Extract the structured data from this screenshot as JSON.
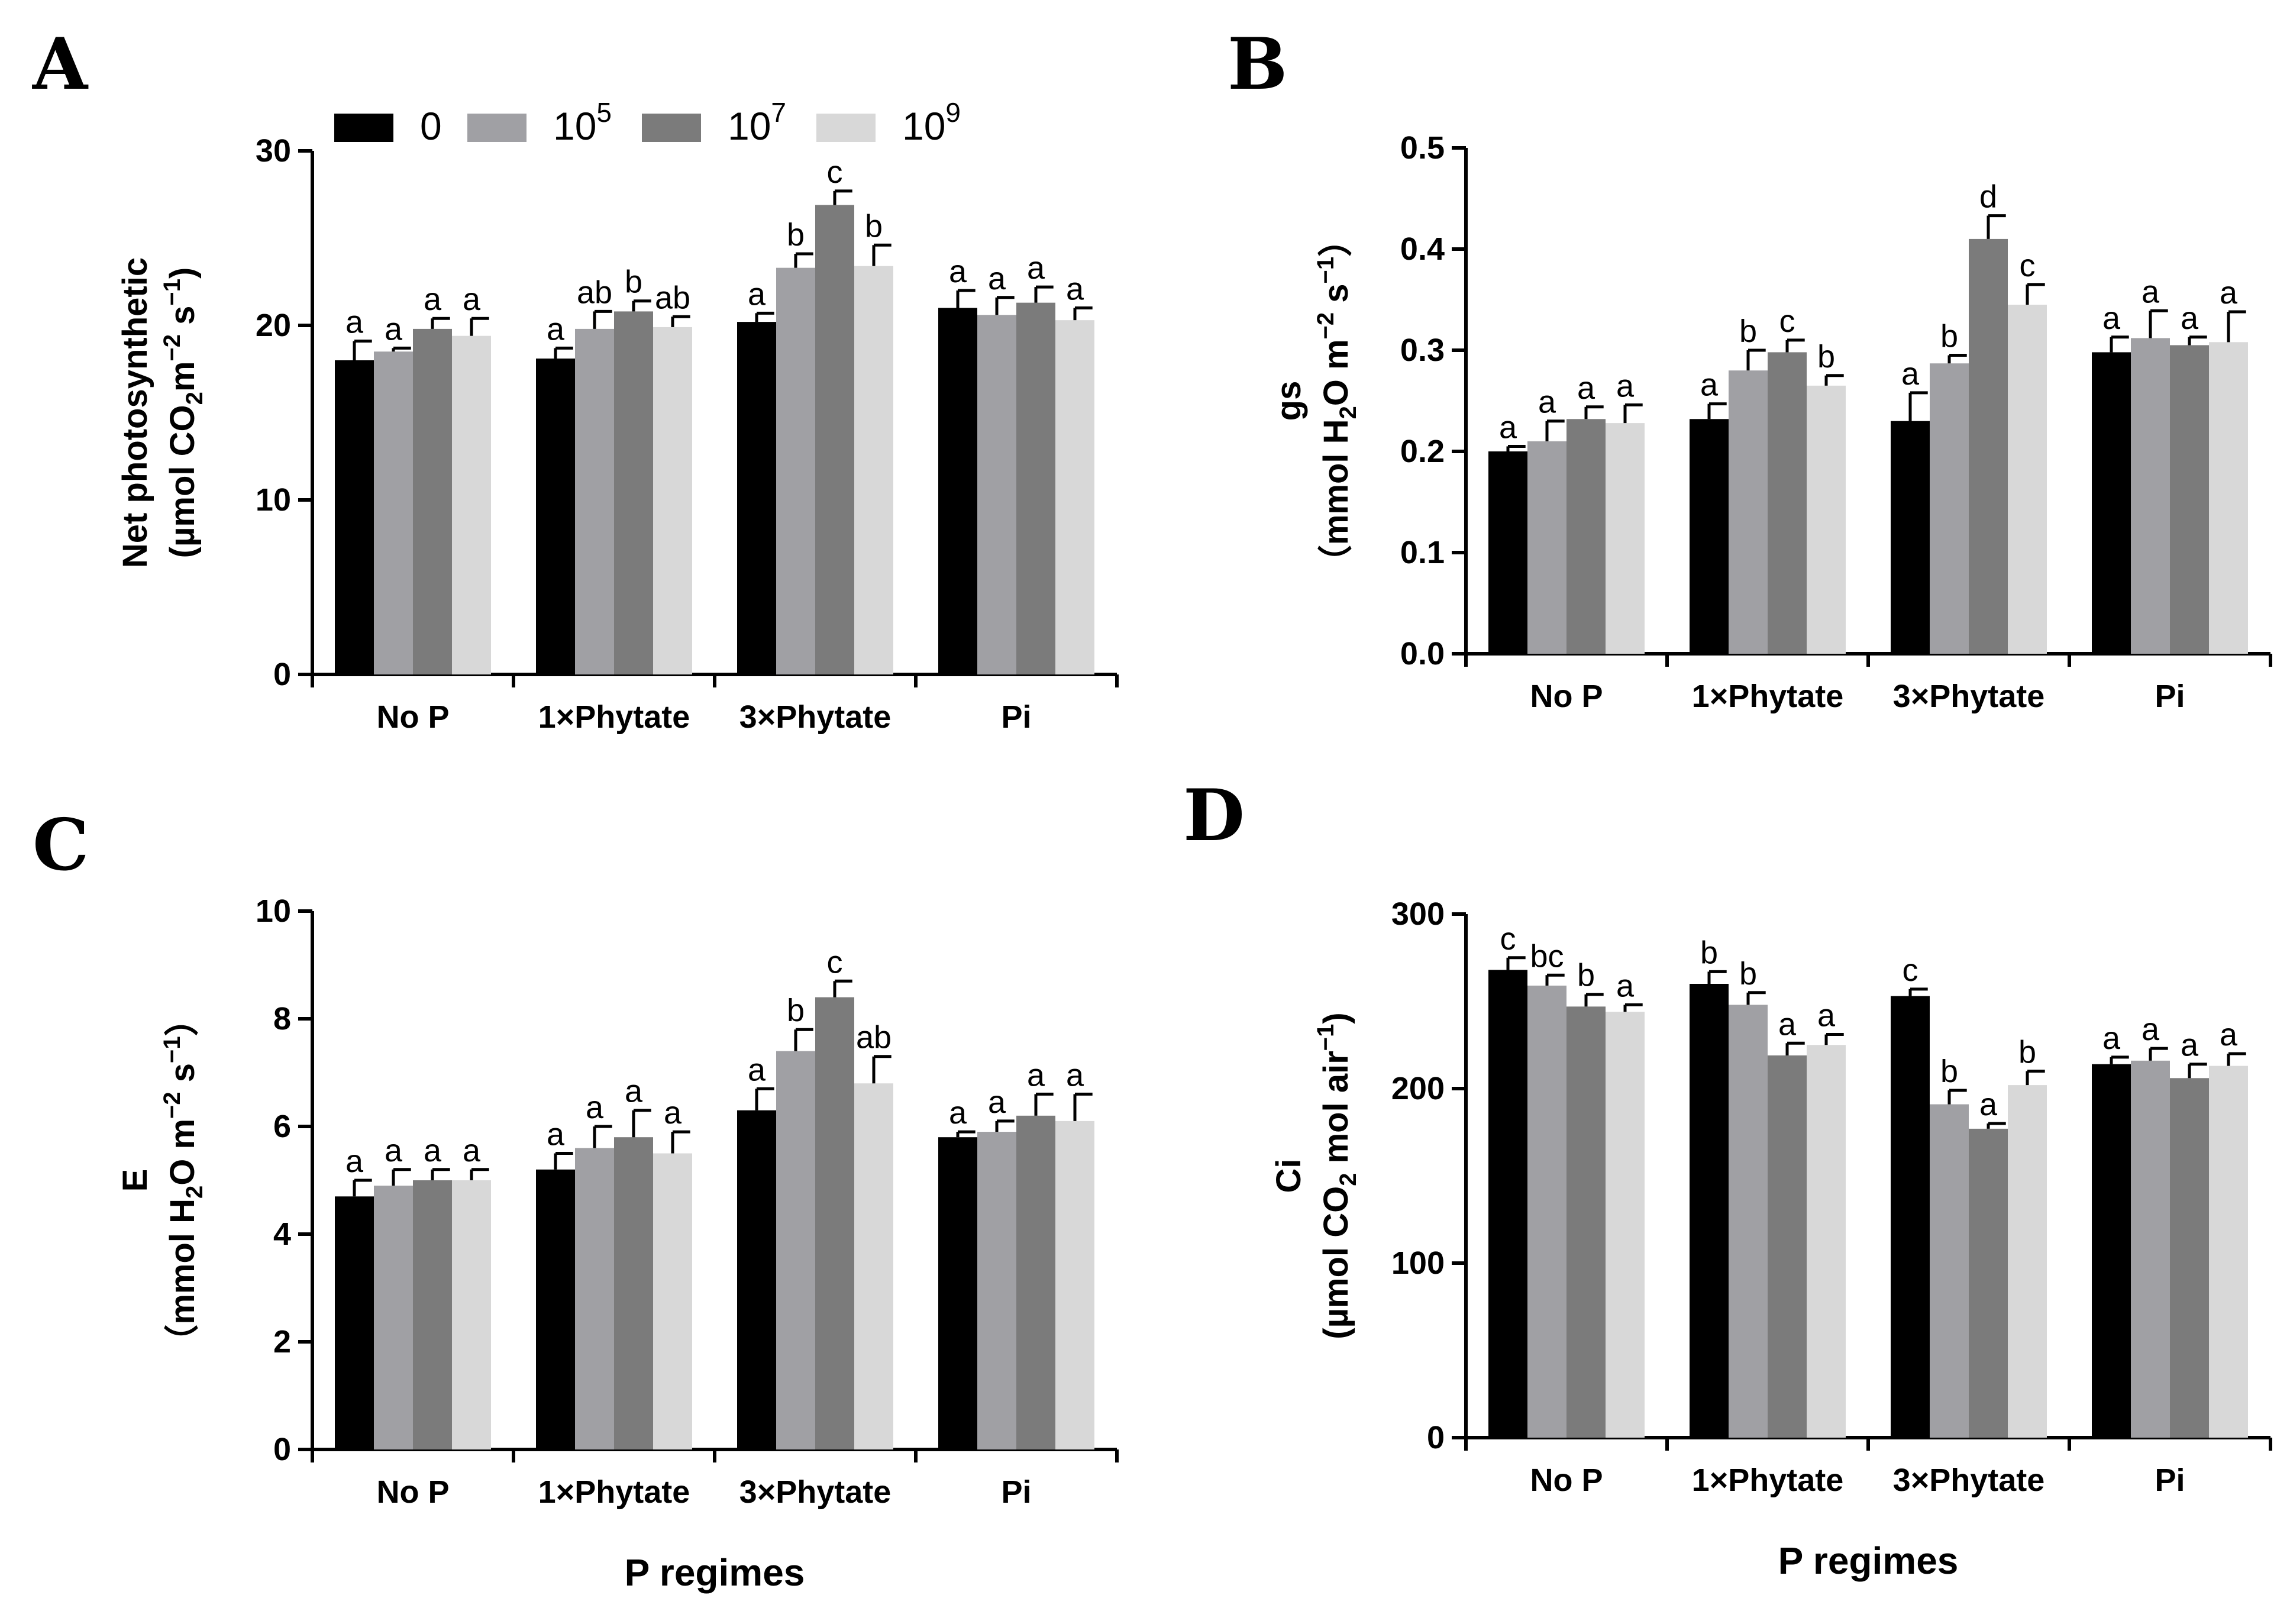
{
  "legend": {
    "entries": [
      {
        "base": "0",
        "sup": ""
      },
      {
        "base": "10",
        "sup": "5"
      },
      {
        "base": "10",
        "sup": "7"
      },
      {
        "base": "10",
        "sup": "9"
      }
    ]
  },
  "colors": [
    "#000000",
    "#a0a0a4",
    "#7b7b7b",
    "#d8d8d8"
  ],
  "chart_data": [
    {
      "panel": "A",
      "type": "bar",
      "categories": [
        "No P",
        "1×Phytate",
        "3×Phytate",
        "Pi"
      ],
      "ylim": [
        0,
        30
      ],
      "yticks": [
        0,
        10,
        20,
        30
      ],
      "ylabel_line1": [
        {
          "t": "Net photosynthetic"
        }
      ],
      "ylabel_line2": [
        {
          "t": "(µmol CO"
        },
        {
          "t": "2",
          "sub": true
        },
        {
          "t": "m"
        },
        {
          "t": "−2",
          "sup": true
        },
        {
          "t": " s"
        },
        {
          "t": "−1",
          "sup": true
        },
        {
          "t": ")"
        }
      ],
      "xlabel": "",
      "series": [
        {
          "name": "0",
          "values": [
            18.0,
            18.1,
            20.2,
            21.0
          ],
          "errors": [
            1.1,
            0.6,
            0.5,
            1.0
          ],
          "letters": [
            "a",
            "a",
            "a",
            "a"
          ]
        },
        {
          "name": "10^5",
          "values": [
            18.5,
            19.8,
            23.3,
            20.6
          ],
          "errors": [
            0.2,
            1.0,
            0.8,
            1.0
          ],
          "letters": [
            "a",
            "ab",
            "b",
            "a"
          ]
        },
        {
          "name": "10^7",
          "values": [
            19.8,
            20.8,
            26.9,
            21.3
          ],
          "errors": [
            0.6,
            0.6,
            0.8,
            0.9
          ],
          "letters": [
            "a",
            "b",
            "c",
            "a"
          ]
        },
        {
          "name": "10^9",
          "values": [
            19.4,
            19.9,
            23.4,
            20.3
          ],
          "errors": [
            1.0,
            0.6,
            1.2,
            0.7
          ],
          "letters": [
            "a",
            "ab",
            "b",
            "a"
          ]
        }
      ]
    },
    {
      "panel": "B",
      "type": "bar",
      "categories": [
        "No P",
        "1×Phytate",
        "3×Phytate",
        "Pi"
      ],
      "ylim": [
        0,
        0.5
      ],
      "yticks": [
        0.0,
        0.1,
        0.2,
        0.3,
        0.4,
        0.5
      ],
      "ylabel_line1": [
        {
          "t": "gs"
        }
      ],
      "ylabel_line2": [
        {
          "t": "（mmol H"
        },
        {
          "t": "2",
          "sub": true
        },
        {
          "t": "O m"
        },
        {
          "t": "−2",
          "sup": true
        },
        {
          "t": " s"
        },
        {
          "t": "−1",
          "sup": true
        },
        {
          "t": "）"
        }
      ],
      "xlabel": "",
      "series": [
        {
          "name": "0",
          "values": [
            0.2,
            0.232,
            0.23,
            0.298
          ],
          "errors": [
            0.005,
            0.015,
            0.028,
            0.015
          ],
          "letters": [
            "a",
            "a",
            "a",
            "a"
          ]
        },
        {
          "name": "10^5",
          "values": [
            0.21,
            0.28,
            0.287,
            0.312
          ],
          "errors": [
            0.02,
            0.02,
            0.008,
            0.027
          ],
          "letters": [
            "a",
            "b",
            "b",
            "a"
          ]
        },
        {
          "name": "10^7",
          "values": [
            0.232,
            0.298,
            0.41,
            0.305
          ],
          "errors": [
            0.012,
            0.012,
            0.023,
            0.008
          ],
          "letters": [
            "a",
            "c",
            "d",
            "a"
          ]
        },
        {
          "name": "10^9",
          "values": [
            0.228,
            0.265,
            0.345,
            0.308
          ],
          "errors": [
            0.018,
            0.01,
            0.02,
            0.03
          ],
          "letters": [
            "a",
            "b",
            "c",
            "a"
          ]
        }
      ]
    },
    {
      "panel": "C",
      "type": "bar",
      "categories": [
        "No P",
        "1×Phytate",
        "3×Phytate",
        "Pi"
      ],
      "ylim": [
        0,
        10
      ],
      "yticks": [
        0,
        2,
        4,
        6,
        8,
        10
      ],
      "ylabel_line1": [
        {
          "t": "E"
        }
      ],
      "ylabel_line2": [
        {
          "t": "（mmol H"
        },
        {
          "t": "2",
          "sub": true
        },
        {
          "t": "O m"
        },
        {
          "t": "−2",
          "sup": true
        },
        {
          "t": " s"
        },
        {
          "t": "−1",
          "sup": true
        },
        {
          "t": "）"
        }
      ],
      "xlabel": "P regimes",
      "series": [
        {
          "name": "0",
          "values": [
            4.7,
            5.2,
            6.3,
            5.8
          ],
          "errors": [
            0.3,
            0.3,
            0.4,
            0.1
          ],
          "letters": [
            "a",
            "a",
            "a",
            "a"
          ]
        },
        {
          "name": "10^5",
          "values": [
            4.9,
            5.6,
            7.4,
            5.9
          ],
          "errors": [
            0.3,
            0.4,
            0.4,
            0.2
          ],
          "letters": [
            "a",
            "a",
            "b",
            "a"
          ]
        },
        {
          "name": "10^7",
          "values": [
            5.0,
            5.8,
            8.4,
            6.2
          ],
          "errors": [
            0.2,
            0.5,
            0.3,
            0.4
          ],
          "letters": [
            "a",
            "a",
            "c",
            "a"
          ]
        },
        {
          "name": "10^9",
          "values": [
            5.0,
            5.5,
            6.8,
            6.1
          ],
          "errors": [
            0.2,
            0.4,
            0.5,
            0.5
          ],
          "letters": [
            "a",
            "a",
            "ab",
            "a"
          ]
        }
      ]
    },
    {
      "panel": "D",
      "type": "bar",
      "categories": [
        "No P",
        "1×Phytate",
        "3×Phytate",
        "Pi"
      ],
      "ylim": [
        0,
        300
      ],
      "yticks": [
        0,
        100,
        200,
        300
      ],
      "ylabel_line1": [
        {
          "t": "Ci"
        }
      ],
      "ylabel_line2": [
        {
          "t": "(µmol CO"
        },
        {
          "t": "2",
          "sub": true
        },
        {
          "t": " mol air"
        },
        {
          "t": "−1",
          "sup": true
        },
        {
          "t": ")"
        }
      ],
      "xlabel": "P regimes",
      "series": [
        {
          "name": "0",
          "values": [
            268,
            260,
            253,
            214
          ],
          "errors": [
            7,
            7,
            4,
            4
          ],
          "letters": [
            "c",
            "b",
            "c",
            "a"
          ]
        },
        {
          "name": "10^5",
          "values": [
            259,
            248,
            191,
            216
          ],
          "errors": [
            6,
            7,
            8,
            7
          ],
          "letters": [
            "bc",
            "b",
            "b",
            "a"
          ]
        },
        {
          "name": "10^7",
          "values": [
            247,
            219,
            177,
            206
          ],
          "errors": [
            7,
            7,
            3,
            8
          ],
          "letters": [
            "b",
            "a",
            "a",
            "a"
          ]
        },
        {
          "name": "10^9",
          "values": [
            244,
            225,
            202,
            213
          ],
          "errors": [
            4,
            6,
            8,
            7
          ],
          "letters": [
            "a",
            "a",
            "b",
            "a"
          ]
        }
      ]
    }
  ]
}
